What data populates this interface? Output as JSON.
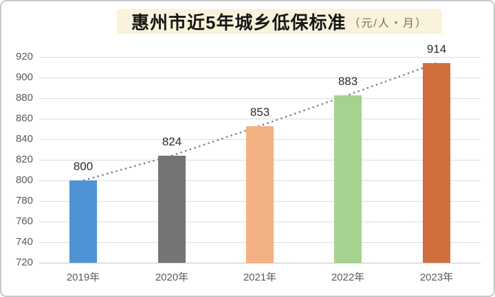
{
  "title": {
    "text": "惠州市近5年城乡低保标准",
    "unit": "（元/人・月）"
  },
  "chart_data": {
    "type": "bar",
    "title": "惠州市近5年城乡低保标准",
    "unit_label": "（元/人・月）",
    "categories": [
      "2019年",
      "2020年",
      "2021年",
      "2022年",
      "2023年"
    ],
    "values": [
      800,
      824,
      853,
      883,
      914
    ],
    "bar_colors": [
      "#4e93d3",
      "#757575",
      "#f4b183",
      "#a6d28f",
      "#d06e3c"
    ],
    "yticks": [
      720,
      740,
      760,
      780,
      800,
      820,
      840,
      860,
      880,
      900,
      920
    ],
    "ylim": [
      720,
      920
    ],
    "xlabel": "",
    "ylabel": "",
    "grid": "horizontal",
    "legend": "none",
    "trendline": {
      "style": "dotted",
      "color": "#71808f",
      "through": "bar-tops"
    }
  },
  "colors": {
    "banner_background": "#faf3dc",
    "card_border": "#c9c9c9",
    "gridline": "#dcdcdc",
    "tick_label": "#595959",
    "value_label": "#2b2b2b"
  }
}
